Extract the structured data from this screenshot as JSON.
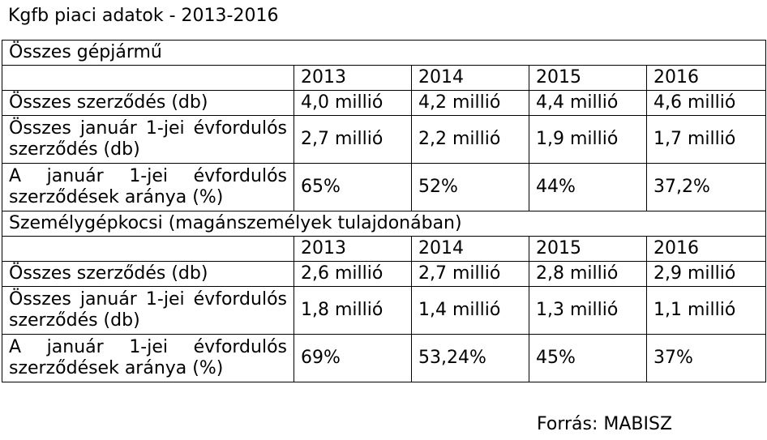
{
  "title": "Kgfb piaci adatok - 2013-2016",
  "sections": [
    {
      "heading": "Összes gépjármű",
      "years": [
        "2013",
        "2014",
        "2015",
        "2016"
      ],
      "rows": [
        {
          "label": "Összes szerződés (db)",
          "values": [
            "4,0 millió",
            "4,2 millió",
            "4,4 millió",
            "4,6 millió"
          ]
        },
        {
          "label": "Összes január 1-jei évfordulós szerződés (db)",
          "values": [
            "2,7 millió",
            "2,2 millió",
            "1,9 millió",
            "1,7 millió"
          ]
        },
        {
          "label": "A január 1-jei évfordulós szerződések aránya (%)",
          "values": [
            "65%",
            "52%",
            "44%",
            "37,2%"
          ]
        }
      ]
    },
    {
      "heading": "Személygépkocsi (magánszemélyek tulajdonában)",
      "years": [
        "2013",
        "2014",
        "2015",
        "2016"
      ],
      "rows": [
        {
          "label": "Összes szerződés (db)",
          "values": [
            "2,6 millió",
            "2,7 millió",
            "2,8 millió",
            "2,9 millió"
          ]
        },
        {
          "label": "Összes január 1-jei évfordulós szerződés (db)",
          "values": [
            "1,8 millió",
            "1,4 millió",
            "1,3 millió",
            "1,1 millió"
          ]
        },
        {
          "label": "A január 1-jei évfordulós szerződések aránya (%)",
          "values": [
            "69%",
            "53,24%",
            "45%",
            "37%"
          ]
        }
      ]
    }
  ],
  "source": "Forrás: MABISZ"
}
